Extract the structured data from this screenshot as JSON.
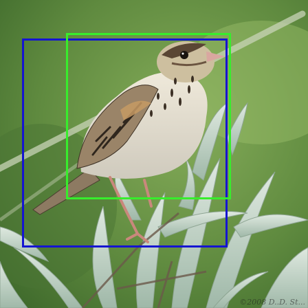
{
  "image": {
    "subject": "bird",
    "colors": {
      "background": "#5f8a3f",
      "blue_box": "#1414d2",
      "green_box": "#37ee2c"
    }
  },
  "watermark": {
    "text": "©2008 D..D. St..."
  }
}
